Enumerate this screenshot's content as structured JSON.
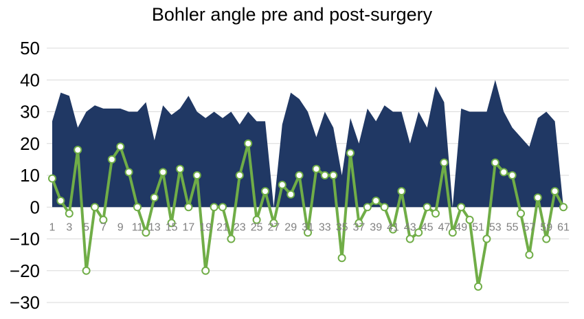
{
  "chart_data": {
    "type": "area",
    "title": "Bohler angle pre and post-surgery",
    "xlabel": "",
    "ylabel": "",
    "ylim": [
      -30,
      50
    ],
    "yticks": [
      50,
      40,
      30,
      20,
      10,
      0,
      -10,
      -20,
      -30
    ],
    "grid": true,
    "legend": "none",
    "x": [
      1,
      2,
      3,
      4,
      5,
      6,
      7,
      8,
      9,
      10,
      11,
      12,
      13,
      14,
      15,
      16,
      17,
      18,
      19,
      20,
      21,
      22,
      23,
      24,
      25,
      26,
      27,
      28,
      29,
      30,
      31,
      32,
      33,
      34,
      35,
      36,
      37,
      38,
      39,
      40,
      41,
      42,
      43,
      44,
      45,
      46,
      47,
      48,
      49,
      50,
      51,
      52,
      53,
      54,
      55,
      56,
      57,
      58,
      59,
      60,
      61
    ],
    "xtick_labels": [
      "1",
      "3",
      "5",
      "7",
      "9",
      "11",
      "13",
      "15",
      "17",
      "19",
      "21",
      "23",
      "25",
      "27",
      "29",
      "31",
      "33",
      "35",
      "37",
      "39",
      "41",
      "43",
      "45",
      "47",
      "49",
      "51",
      "53",
      "55",
      "57",
      "59",
      "61"
    ],
    "series": [
      {
        "name": "",
        "type": "area",
        "color": "#203864",
        "values": [
          27,
          36,
          35,
          25,
          30,
          32,
          31,
          31,
          31,
          30,
          30,
          33,
          21,
          32,
          29,
          31,
          35,
          30,
          28,
          30,
          28,
          30,
          26,
          30,
          27,
          27,
          0,
          26,
          36,
          34,
          30,
          22,
          30,
          25,
          10,
          28,
          20,
          31,
          27,
          32,
          30,
          30,
          20,
          30,
          25,
          38,
          33,
          0,
          31,
          30,
          30,
          30,
          40,
          30,
          25,
          22,
          19,
          28,
          30,
          27,
          0
        ]
      },
      {
        "name": "",
        "type": "line",
        "color": "#70ad47",
        "values": [
          9,
          2,
          -2,
          18,
          -20,
          0,
          -4,
          15,
          19,
          11,
          0,
          -8,
          3,
          11,
          -5,
          12,
          0,
          10,
          -20,
          0,
          0,
          -10,
          10,
          20,
          -4,
          5,
          -5,
          7,
          4,
          10,
          -8,
          12,
          10,
          10,
          -16,
          17,
          -5,
          0,
          2,
          0,
          -7,
          5,
          -10,
          -8,
          0,
          -2,
          14,
          -8,
          0,
          -4,
          -25,
          -10,
          14,
          11,
          10,
          -2,
          -15,
          3,
          -10,
          5,
          0
        ]
      }
    ]
  }
}
